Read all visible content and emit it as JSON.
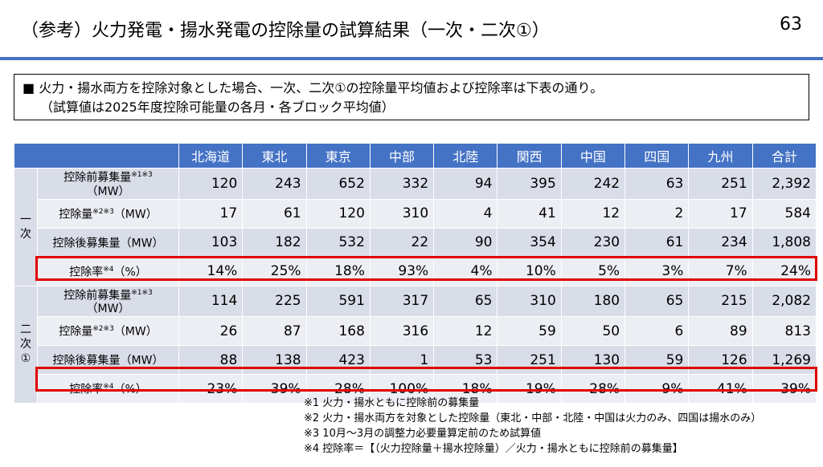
{
  "title": "（参考）火力発電・揚水発電の控除量の試算結果（一次・二次①）",
  "page_number": "63",
  "summary": {
    "line1": "■  火力・揚水両方を控除対象とした場合、一次、二次①の控除量平均値および控除率は下表の通り。",
    "line2": "（試算値は2025年度控除可能量の各月・各ブロック平均値）"
  },
  "table": {
    "headers": [
      "北海道",
      "東北",
      "東京",
      "中部",
      "北陸",
      "関西",
      "中国",
      "四国",
      "九州",
      "合計"
    ],
    "groups": [
      {
        "label": "一\n次",
        "rows": [
          {
            "label": "控除前募集量",
            "sup": "※1※3",
            "unit": "（MW）",
            "values": [
              "120",
              "243",
              "652",
              "332",
              "94",
              "395",
              "242",
              "63",
              "251",
              "2,392"
            ]
          },
          {
            "label": "控除量",
            "sup": "※2※3",
            "unit": "（MW）",
            "values": [
              "17",
              "61",
              "120",
              "310",
              "4",
              "41",
              "12",
              "2",
              "17",
              "584"
            ]
          },
          {
            "label": "控除後募集量（MW）",
            "sup": "",
            "unit": "",
            "values": [
              "103",
              "182",
              "532",
              "22",
              "90",
              "354",
              "230",
              "61",
              "234",
              "1,808"
            ]
          },
          {
            "label": "控除率",
            "sup": "※4",
            "unit": "（%）",
            "values": [
              "14%",
              "25%",
              "18%",
              "93%",
              "4%",
              "10%",
              "5%",
              "3%",
              "7%",
              "24%"
            ]
          }
        ]
      },
      {
        "label": "二\n次\n①",
        "rows": [
          {
            "label": "控除前募集量",
            "sup": "※1※3",
            "unit": "（MW）",
            "values": [
              "114",
              "225",
              "591",
              "317",
              "65",
              "310",
              "180",
              "65",
              "215",
              "2,082"
            ]
          },
          {
            "label": "控除量",
            "sup": "※2※3",
            "unit": "（MW）",
            "values": [
              "26",
              "87",
              "168",
              "316",
              "12",
              "59",
              "50",
              "6",
              "89",
              "813"
            ]
          },
          {
            "label": "控除後募集量（MW）",
            "sup": "",
            "unit": "",
            "values": [
              "88",
              "138",
              "423",
              "1",
              "53",
              "251",
              "130",
              "59",
              "126",
              "1,269"
            ]
          },
          {
            "label": "控除率",
            "sup": "※4",
            "unit": "（%）",
            "values": [
              "23%",
              "39%",
              "28%",
              "100%",
              "18%",
              "19%",
              "28%",
              "9%",
              "41%",
              "39%"
            ]
          }
        ]
      }
    ]
  },
  "footnotes": [
    "※1 火力・揚水ともに控除前の募集量",
    "※2 火力・揚水両方を対象とした控除量（東北・中部・北陸・中国は火力のみ、四国は揚水のみ）",
    "※3 10月～3月の調整力必要量算定前のため試算値",
    "※4 控除率＝【（火力控除量＋揚水控除量）／火力・揚水ともに控除前の募集量】"
  ],
  "colors": {
    "header_bg": "#4472c4",
    "row_bg": "#d9dde8",
    "row_alt_bg": "#eceef4",
    "highlight": "#e00000"
  }
}
